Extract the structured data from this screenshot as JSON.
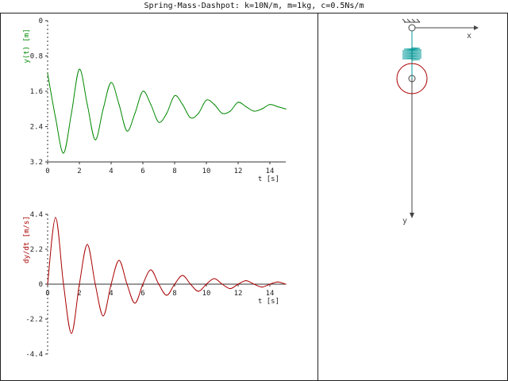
{
  "window": {
    "title": "Spring-Mass-Dashpot: k=10N/m, m=1kg, c=0.5Ns/m"
  },
  "params": {
    "k": 10,
    "m": 1,
    "c": 0.5
  },
  "colors": {
    "displacement": "#008800",
    "velocity": "#aa0000",
    "spring": "#009999",
    "mass": "#aa0000",
    "axes": "#333333"
  },
  "animation": {
    "x_axis_label": "x",
    "y_axis_label": "y"
  },
  "chart_data": [
    {
      "type": "line",
      "title": "",
      "xlabel": "t [s]",
      "ylabel": "y(t) [m]",
      "xlim": [
        0,
        15
      ],
      "ylim": [
        0,
        3.2
      ],
      "y_inverted": true,
      "xticks": [
        "0",
        "2",
        "4",
        "6",
        "8",
        "10",
        "12",
        "14"
      ],
      "yticks": [
        "0",
        "0.8",
        "1.6",
        "2.4",
        "3.2"
      ],
      "series": [
        {
          "x": [
            0,
            0.5,
            1.0,
            1.5,
            2.0,
            2.5,
            3.0,
            3.5,
            4.0,
            4.5,
            5.0,
            5.5,
            6.0,
            6.5,
            7.0,
            7.5,
            8.0,
            8.5,
            9.0,
            9.5,
            10.0,
            10.5,
            11.0,
            11.5,
            12.0,
            12.5,
            13.0,
            13.5,
            14.0,
            14.5,
            15.0
          ],
          "values": [
            1.2,
            2.2,
            3.0,
            2.1,
            1.1,
            1.9,
            2.7,
            2.0,
            1.4,
            1.9,
            2.5,
            2.1,
            1.6,
            1.9,
            2.3,
            2.1,
            1.7,
            1.9,
            2.2,
            2.1,
            1.8,
            1.9,
            2.1,
            2.05,
            1.85,
            1.95,
            2.05,
            2.0,
            1.9,
            1.95,
            2.0
          ]
        }
      ]
    },
    {
      "type": "line",
      "title": "",
      "xlabel": "t [s]",
      "ylabel": "dy/dt [m/s]",
      "xlim": [
        0,
        15
      ],
      "ylim": [
        -4.4,
        4.4
      ],
      "xticks": [
        "0",
        "2",
        "4",
        "6",
        "8",
        "10",
        "12",
        "14"
      ],
      "yticks": [
        "4.4",
        "2.2",
        "0",
        "-2.2",
        "-4.4"
      ],
      "series": [
        {
          "x": [
            0,
            0.5,
            1.0,
            1.5,
            2.0,
            2.5,
            3.0,
            3.5,
            4.0,
            4.5,
            5.0,
            5.5,
            6.0,
            6.5,
            7.0,
            7.5,
            8.0,
            8.5,
            9.0,
            9.5,
            10.0,
            10.5,
            11.0,
            11.5,
            12.0,
            12.5,
            13.0,
            13.5,
            14.0,
            14.5,
            15.0
          ],
          "values": [
            0,
            4.2,
            0,
            -3.1,
            0,
            2.5,
            0,
            -2.0,
            0,
            1.5,
            0,
            -1.2,
            0,
            0.9,
            0,
            -0.7,
            0,
            0.55,
            0,
            -0.45,
            0,
            0.35,
            0,
            -0.28,
            0,
            0.22,
            0,
            -0.18,
            0,
            0.14,
            0
          ]
        }
      ]
    }
  ]
}
